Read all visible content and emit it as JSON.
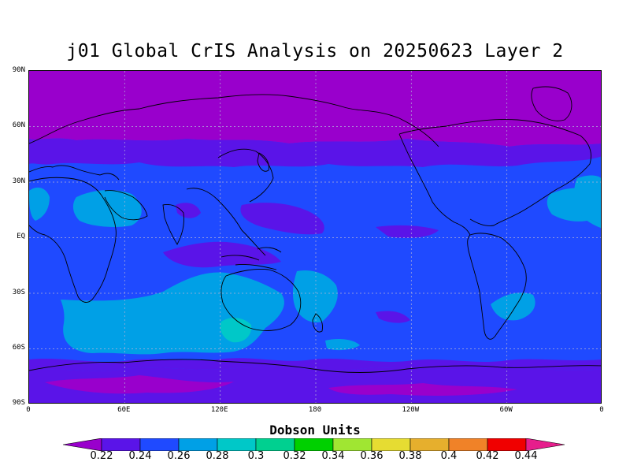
{
  "map": {
    "title": "j01 Global CrIS Analysis on 20250623 Layer 2",
    "lat_ticks": [
      "90N",
      "60N",
      "30N",
      "EQ",
      "30S",
      "60S",
      "90S"
    ],
    "lon_ticks": [
      "0",
      "60E",
      "120E",
      "180",
      "120W",
      "60W",
      "0"
    ],
    "projection": "equirectangular",
    "grid_lines": true,
    "colors": {
      "c022": "#9900cc",
      "c024": "#5a14e8",
      "c026": "#1f4aff",
      "c028": "#00a0e6",
      "c030": "#00c8c8",
      "c032": "#00d090",
      "c034": "#00d000",
      "c036": "#a0e632",
      "c038": "#e6dc32",
      "c040": "#e6af2d",
      "c042": "#f08228",
      "c044": "#f00000",
      "cmax": "#e61e8c"
    }
  },
  "colorbar": {
    "title": "Dobson Units",
    "labels": [
      "0.22",
      "0.24",
      "0.26",
      "0.28",
      "0.3",
      "0.32",
      "0.34",
      "0.36",
      "0.38",
      "0.4",
      "0.42",
      "0.44"
    ]
  }
}
